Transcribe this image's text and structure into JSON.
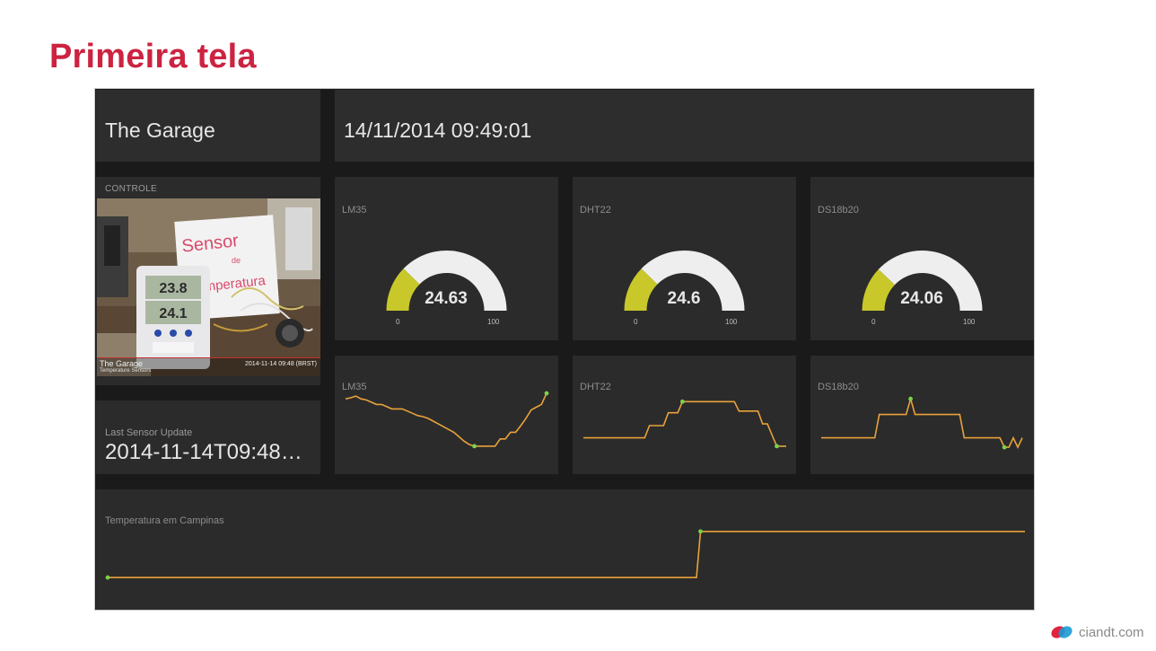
{
  "slide": {
    "title": "Primeira tela",
    "brand": "ciandt.com"
  },
  "header": {
    "title": "The Garage",
    "datetime": "14/11/2014 09:49:01"
  },
  "control": {
    "label": "CONTROLE",
    "camera": {
      "name": "The Garage",
      "subtitle": "Temperature Sensors",
      "timestamp": "2014-11-14 09:48 (BRST)",
      "sign_text": "Sensor de Temperatura",
      "display_top": "23.8",
      "display_bottom": "24.1"
    }
  },
  "sensor_update": {
    "title": "Last Sensor Update",
    "value": "2014-11-14T09:48…"
  },
  "gauges": [
    {
      "name": "LM35",
      "value": "24.63",
      "fraction": 0.2463,
      "min": "0",
      "max": "100"
    },
    {
      "name": "DHT22",
      "value": "24.6",
      "fraction": 0.246,
      "min": "0",
      "max": "100"
    },
    {
      "name": "DS18b20",
      "value": "24.06",
      "fraction": 0.2406,
      "min": "0",
      "max": "100"
    }
  ],
  "sparklines": [
    {
      "name": "LM35",
      "values": [
        0.9,
        0.92,
        0.95,
        0.9,
        0.88,
        0.84,
        0.8,
        0.8,
        0.76,
        0.72,
        0.72,
        0.72,
        0.68,
        0.64,
        0.6,
        0.58,
        0.55,
        0.5,
        0.45,
        0.4,
        0.35,
        0.3,
        0.22,
        0.14,
        0.08,
        0.05,
        0.05,
        0.05,
        0.05,
        0.05,
        0.18,
        0.18,
        0.3,
        0.3,
        0.42,
        0.55,
        0.7,
        0.75,
        0.8,
        1.0
      ]
    },
    {
      "name": "DHT22",
      "values": [
        0.2,
        0.2,
        0.2,
        0.2,
        0.2,
        0.2,
        0.2,
        0.2,
        0.2,
        0.2,
        0.2,
        0.2,
        0.2,
        0.2,
        0.42,
        0.42,
        0.42,
        0.42,
        0.65,
        0.65,
        0.65,
        0.85,
        0.85,
        0.85,
        0.85,
        0.85,
        0.85,
        0.85,
        0.85,
        0.85,
        0.85,
        0.85,
        0.85,
        0.68,
        0.68,
        0.68,
        0.68,
        0.68,
        0.45,
        0.45,
        0.25,
        0.05,
        0.05,
        0.05
      ]
    },
    {
      "name": "DS18b20",
      "values": [
        0.2,
        0.2,
        0.2,
        0.2,
        0.2,
        0.2,
        0.2,
        0.2,
        0.2,
        0.2,
        0.2,
        0.2,
        0.2,
        0.62,
        0.62,
        0.62,
        0.62,
        0.62,
        0.62,
        0.62,
        0.9,
        0.62,
        0.62,
        0.62,
        0.62,
        0.62,
        0.62,
        0.62,
        0.62,
        0.62,
        0.62,
        0.62,
        0.2,
        0.2,
        0.2,
        0.2,
        0.2,
        0.2,
        0.2,
        0.2,
        0.2,
        0.03,
        0.03,
        0.2,
        0.03,
        0.2
      ]
    }
  ],
  "campinas": {
    "title": "Temperatura em Campinas",
    "values": [
      0.05,
      0.05,
      0.05,
      0.05,
      0.05,
      0.05,
      0.05,
      0.05,
      0.05,
      0.05,
      0.05,
      0.05,
      0.05,
      0.05,
      0.05,
      0.05,
      0.05,
      0.05,
      0.05,
      0.05,
      0.05,
      0.05,
      0.05,
      0.05,
      0.05,
      0.05,
      0.05,
      0.05,
      0.05,
      0.05,
      0.05,
      0.05,
      0.05,
      0.05,
      0.05,
      0.05,
      0.05,
      0.05,
      0.05,
      0.05,
      0.05,
      0.05,
      0.05,
      0.05,
      0.05,
      0.05,
      0.05,
      0.05,
      0.05,
      0.05,
      0.05,
      0.05,
      0.05,
      0.05,
      0.05,
      0.05,
      0.05,
      0.05,
      0.05,
      0.05,
      0.05,
      0.05,
      0.05,
      0.05,
      0.05,
      0.05,
      0.05,
      0.05,
      0.05,
      0.05,
      0.05,
      0.05,
      0.05,
      0.05,
      0.05,
      0.05,
      0.05,
      0.05,
      0.05,
      0.05,
      0.05,
      0.05,
      0.05,
      0.05,
      0.05,
      0.05,
      0.05,
      0.05,
      0.05,
      0.05,
      0.05,
      0.05,
      0.05,
      0.05,
      0.05,
      0.05,
      0.05,
      0.05,
      0.05,
      0.05,
      0.05,
      0.05,
      0.05,
      0.05,
      0.05,
      0.05,
      0.05,
      0.05,
      0.05,
      0.05,
      0.05,
      0.05,
      0.05,
      0.05,
      0.05,
      0.05,
      0.05,
      0.05,
      0.05,
      0.05,
      0.05,
      0.05,
      0.05,
      0.05,
      0.05,
      0.05,
      0.05,
      0.05,
      0.05,
      0.05,
      0.05,
      0.05,
      0.05,
      0.05,
      0.05,
      0.05,
      0.05,
      0.05,
      0.05,
      0.05,
      0.05,
      0.05,
      0.05,
      0.05,
      0.05,
      0.05,
      0.05,
      0.05,
      0.95,
      0.95,
      0.95,
      0.95,
      0.95,
      0.95,
      0.95,
      0.95,
      0.95,
      0.95,
      0.95,
      0.95,
      0.95,
      0.95,
      0.95,
      0.95,
      0.95,
      0.95,
      0.95,
      0.95,
      0.95,
      0.95,
      0.95,
      0.95,
      0.95,
      0.95,
      0.95,
      0.95,
      0.95,
      0.95,
      0.95,
      0.95,
      0.95,
      0.95,
      0.95,
      0.95,
      0.95,
      0.95,
      0.95,
      0.95,
      0.95,
      0.95,
      0.95,
      0.95,
      0.95,
      0.95,
      0.95,
      0.95,
      0.95,
      0.95,
      0.95,
      0.95,
      0.95,
      0.95,
      0.95,
      0.95,
      0.95,
      0.95,
      0.95,
      0.95,
      0.95,
      0.95,
      0.95,
      0.95,
      0.95,
      0.95,
      0.95,
      0.95,
      0.95,
      0.95,
      0.95,
      0.95,
      0.95,
      0.95,
      0.95,
      0.95,
      0.95,
      0.95,
      0.95,
      0.95,
      0.95,
      0.95
    ]
  },
  "colors": {
    "accent_title": "#cc2341",
    "gauge_fill": "#c8c82a",
    "gauge_track": "#eeeeee",
    "line": "#e9a23b",
    "marker": "#7bd148"
  }
}
